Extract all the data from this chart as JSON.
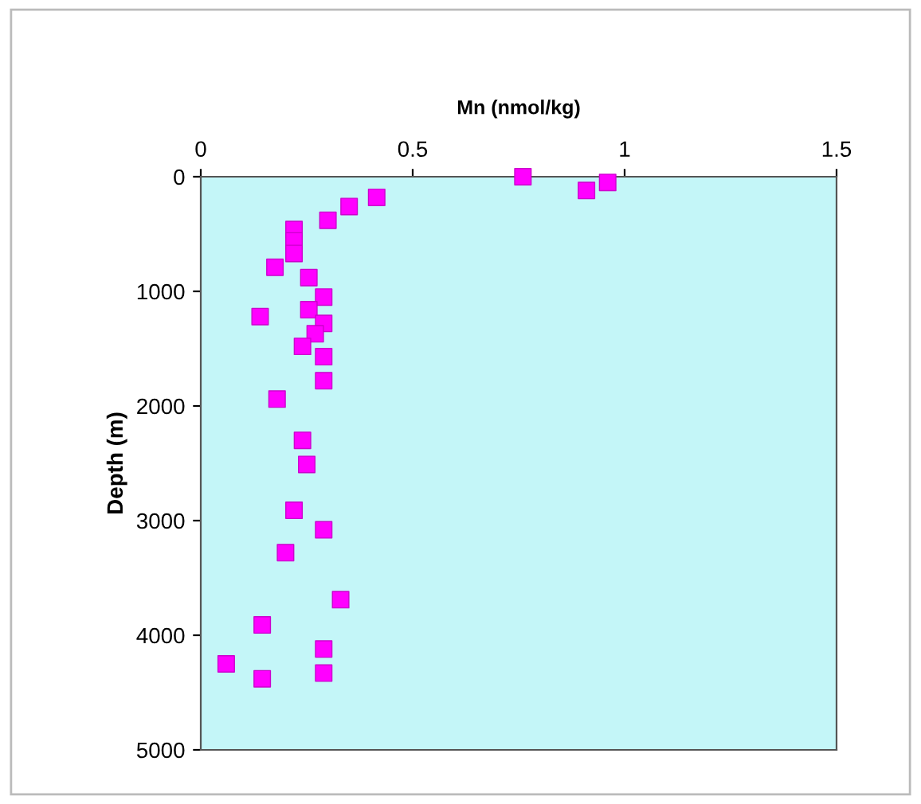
{
  "chart_data": {
    "type": "scatter",
    "xlabel": "Mn (nmol/kg)",
    "ylabel": "Depth (m)",
    "series": [
      {
        "color": "#ff00ff",
        "x": [
          0.76,
          0.96,
          0.91,
          0.415,
          0.35,
          0.3,
          0.22,
          0.22,
          0.22,
          0.175,
          0.255,
          0.29,
          0.14,
          0.255,
          0.29,
          0.27,
          0.24,
          0.29,
          0.29,
          0.18,
          0.24,
          0.25,
          0.22,
          0.29,
          0.2,
          0.33,
          0.145,
          0.29,
          0.06,
          0.145,
          0.29
        ],
        "values": [
          0,
          50,
          120,
          180,
          260,
          380,
          460,
          560,
          670,
          790,
          880,
          1050,
          1220,
          1160,
          1280,
          1370,
          1480,
          1570,
          1780,
          1940,
          2300,
          2510,
          2910,
          3080,
          3280,
          3690,
          3910,
          4120,
          4250,
          4380,
          4330
        ]
      }
    ],
    "xlim": [
      0,
      1.5
    ],
    "xticks": [
      0,
      0.5,
      1,
      1.5
    ],
    "ylim": [
      5000,
      0
    ],
    "yticks": [
      0,
      1000,
      2000,
      3000,
      4000,
      5000
    ],
    "marker": "square",
    "grid": false,
    "legend": false
  }
}
